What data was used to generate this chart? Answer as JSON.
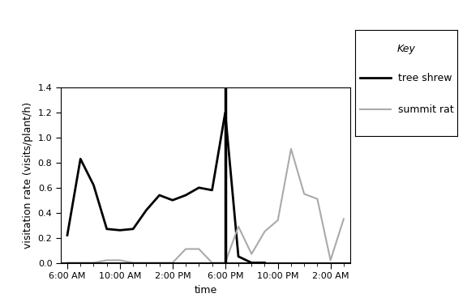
{
  "xlabel": "time",
  "ylabel": "visitation rate (visits/plant/h)",
  "ylim": [
    0,
    1.4
  ],
  "yticks": [
    0.0,
    0.2,
    0.4,
    0.6,
    0.8,
    1.0,
    1.2,
    1.4
  ],
  "xtick_labels": [
    "6:00 AM",
    "10:00 AM",
    "2:00 PM",
    "6:00 PM",
    "10:00 PM",
    "2:00 AM"
  ],
  "xtick_positions": [
    0,
    4,
    8,
    12,
    16,
    20
  ],
  "legend_title": "Key",
  "tree_shrew_label": "tree shrew",
  "summit_rat_label": "summit rat",
  "tree_shrew_color": "#000000",
  "summit_rat_color": "#aaaaaa",
  "tree_shrew_linewidth": 2.0,
  "summit_rat_linewidth": 1.5,
  "tree_shrew_x": [
    0,
    1,
    2,
    3,
    4,
    5,
    6,
    7,
    8,
    9,
    10,
    11,
    12,
    13,
    14,
    15
  ],
  "tree_shrew_y": [
    0.22,
    0.83,
    0.62,
    0.27,
    0.26,
    0.27,
    0.42,
    0.54,
    0.5,
    0.54,
    0.6,
    0.58,
    1.2,
    0.05,
    0.0,
    0.0
  ],
  "summit_rat_x": [
    0,
    1,
    2,
    3,
    4,
    5,
    6,
    7,
    8,
    9,
    10,
    11,
    12,
    13,
    14,
    15,
    16,
    17,
    18,
    19,
    20,
    21
  ],
  "summit_rat_y": [
    0.0,
    0.0,
    0.0,
    0.02,
    0.02,
    0.0,
    0.0,
    0.0,
    0.0,
    0.11,
    0.11,
    0.0,
    0.0,
    0.29,
    0.07,
    0.25,
    0.34,
    0.91,
    0.55,
    0.51,
    0.02,
    0.35
  ],
  "vertical_line_x": 12,
  "background_color": "#ffffff",
  "legend_fontsize": 9,
  "axis_fontsize": 9,
  "tick_fontsize": 8,
  "xlim": [
    -0.5,
    21.5
  ]
}
